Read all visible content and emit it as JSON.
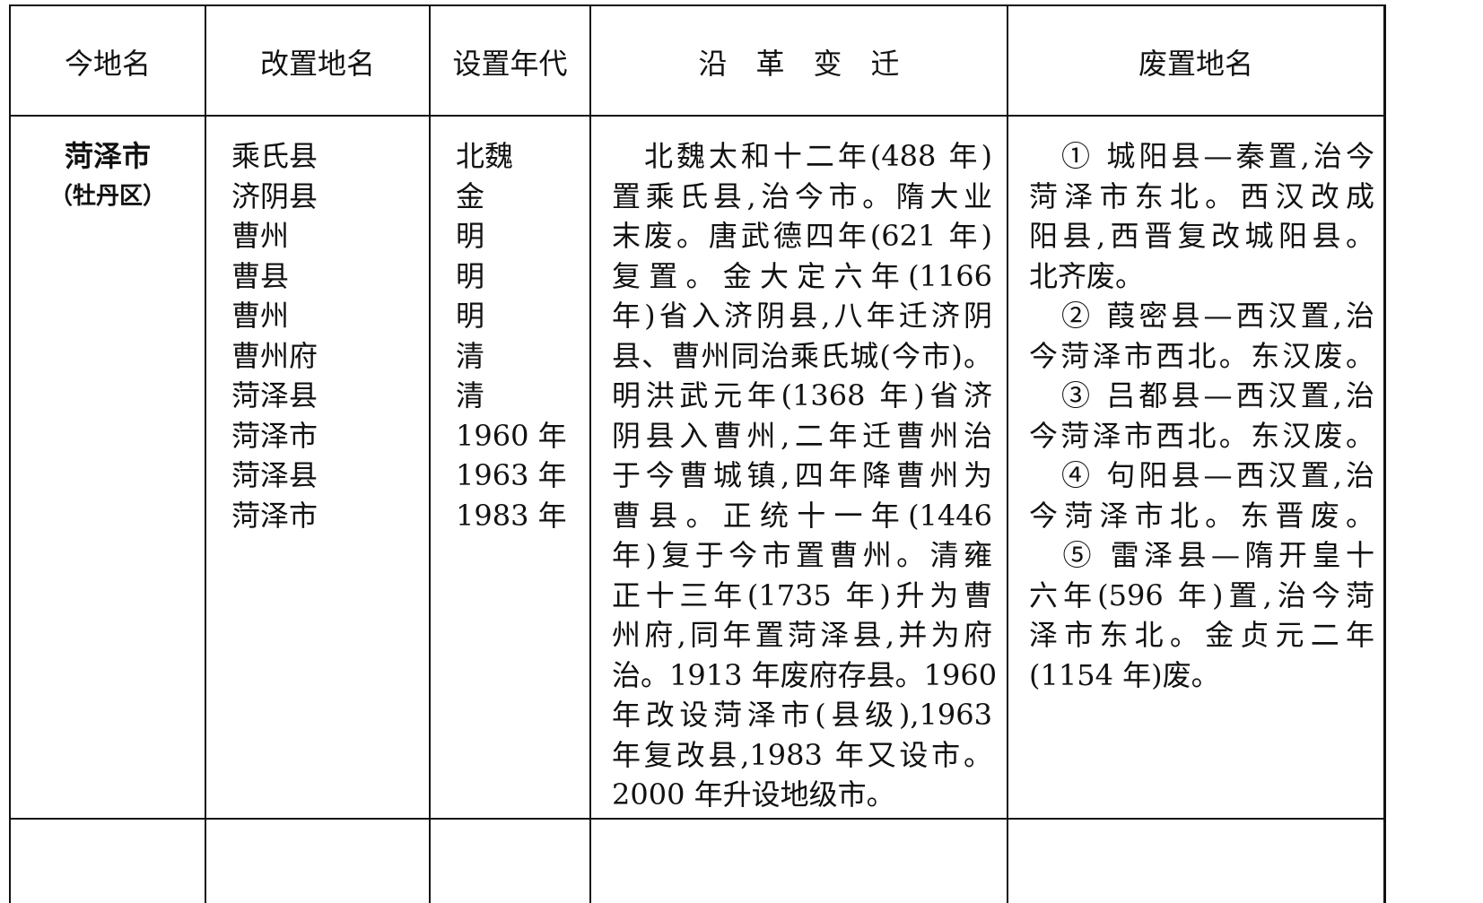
{
  "headers": [
    "今地名",
    "改置地名",
    "设置年代",
    "沿　革　变　迁",
    "废置地名"
  ],
  "row": {
    "current_name": "菏泽市",
    "current_name_note": "（牡丹区）",
    "renamed": [
      "乘氏县",
      "济阴县",
      "曹州",
      "曹县",
      "曹州",
      "曹州府",
      "菏泽县",
      "菏泽市",
      "菏泽县",
      "菏泽市"
    ],
    "years": [
      "北魏",
      "金",
      "明",
      "明",
      "明",
      "清",
      "清",
      "1960 年",
      "1963 年",
      "1983 年"
    ],
    "history_lines": [
      "　北魏太和十二年(488 年)",
      "置乘氏县,治今市。隋大业",
      "末废。唐武德四年(621 年)",
      "复置。金大定六年(1166",
      "年)省入济阴县,八年迁济阴",
      "县、曹州同治乘氏城(今市)。",
      "明洪武元年(1368 年)省济",
      "阴县入曹州,二年迁曹州治",
      "于今曹城镇,四年降曹州为",
      "曹县。正统十一年(1446",
      "年)复于今市置曹州。清雍",
      "正十三年(1735 年)升为曹",
      "州府,同年置菏泽县,并为府",
      "治。1913 年废府存县。1960",
      "年改设菏泽市(县级),1963",
      "年复改县,1983 年又设市。",
      "2000 年升设地级市。"
    ],
    "abolished_lines": [
      "　① 城阳县—秦置,治今",
      "菏泽市东北。西汉改成",
      "阳县,西晋复改城阳县。",
      "北齐废。",
      "　② 葭密县—西汉置,治",
      "今菏泽市西北。东汉废。",
      "　③ 吕都县—西汉置,治",
      "今菏泽市西北。东汉废。",
      "　④ 句阳县—西汉置,治",
      "今菏泽市北。东晋废。",
      "　⑤ 雷泽县—隋开皇十",
      "六年(596 年)置,治今菏",
      "泽市东北。金贞元二年",
      "(1154 年)废。"
    ]
  }
}
